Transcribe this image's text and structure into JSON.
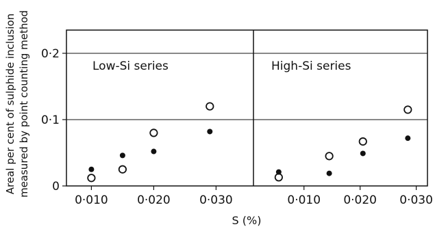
{
  "chart_data": [
    {
      "type": "scatter",
      "panel_label": "Low-Si series",
      "ylabel": "Areal per cent of sulphide inclusion measured by point counting method",
      "xlabel": "",
      "x_ticks": [
        "0·010",
        "0·020",
        "0·030"
      ],
      "x_tick_values": [
        0.01,
        0.02,
        0.03
      ],
      "xlim": [
        0.006,
        0.036
      ],
      "y_ticks": [
        "0",
        "0·1",
        "0·2"
      ],
      "y_tick_values": [
        0,
        0.1,
        0.2
      ],
      "ylim": [
        0,
        0.235
      ],
      "grid": "horizontal",
      "series": [
        {
          "marker": "open-circle",
          "x": [
            0.01,
            0.015,
            0.02,
            0.029
          ],
          "y": [
            0.012,
            0.025,
            0.08,
            0.12
          ]
        },
        {
          "marker": "filled-circle",
          "x": [
            0.01,
            0.015,
            0.02,
            0.029
          ],
          "y": [
            0.025,
            0.046,
            0.052,
            0.082
          ]
        }
      ]
    },
    {
      "type": "scatter",
      "panel_label": "High-Si series",
      "xlabel": "",
      "x_ticks": [
        "0·010",
        "0·020",
        "0·030"
      ],
      "x_tick_values": [
        0.01,
        0.02,
        0.03
      ],
      "xlim": [
        0.001,
        0.032
      ],
      "y_ticks": [
        "0",
        "0·1",
        "0·2"
      ],
      "y_tick_values": [
        0,
        0.1,
        0.2
      ],
      "ylim": [
        0,
        0.235
      ],
      "grid": "horizontal",
      "series": [
        {
          "marker": "open-circle",
          "x": [
            0.0055,
            0.0145,
            0.0205,
            0.0285
          ],
          "y": [
            0.013,
            0.045,
            0.067,
            0.115
          ]
        },
        {
          "marker": "filled-circle",
          "x": [
            0.0055,
            0.0145,
            0.0205,
            0.0285
          ],
          "y": [
            0.021,
            0.019,
            0.049,
            0.072
          ]
        }
      ]
    }
  ],
  "shared_xlabel": "S (%)",
  "ylabel_line1": "Areal per cent of sulphide inclusion",
  "ylabel_line2": "measured by point counting method"
}
